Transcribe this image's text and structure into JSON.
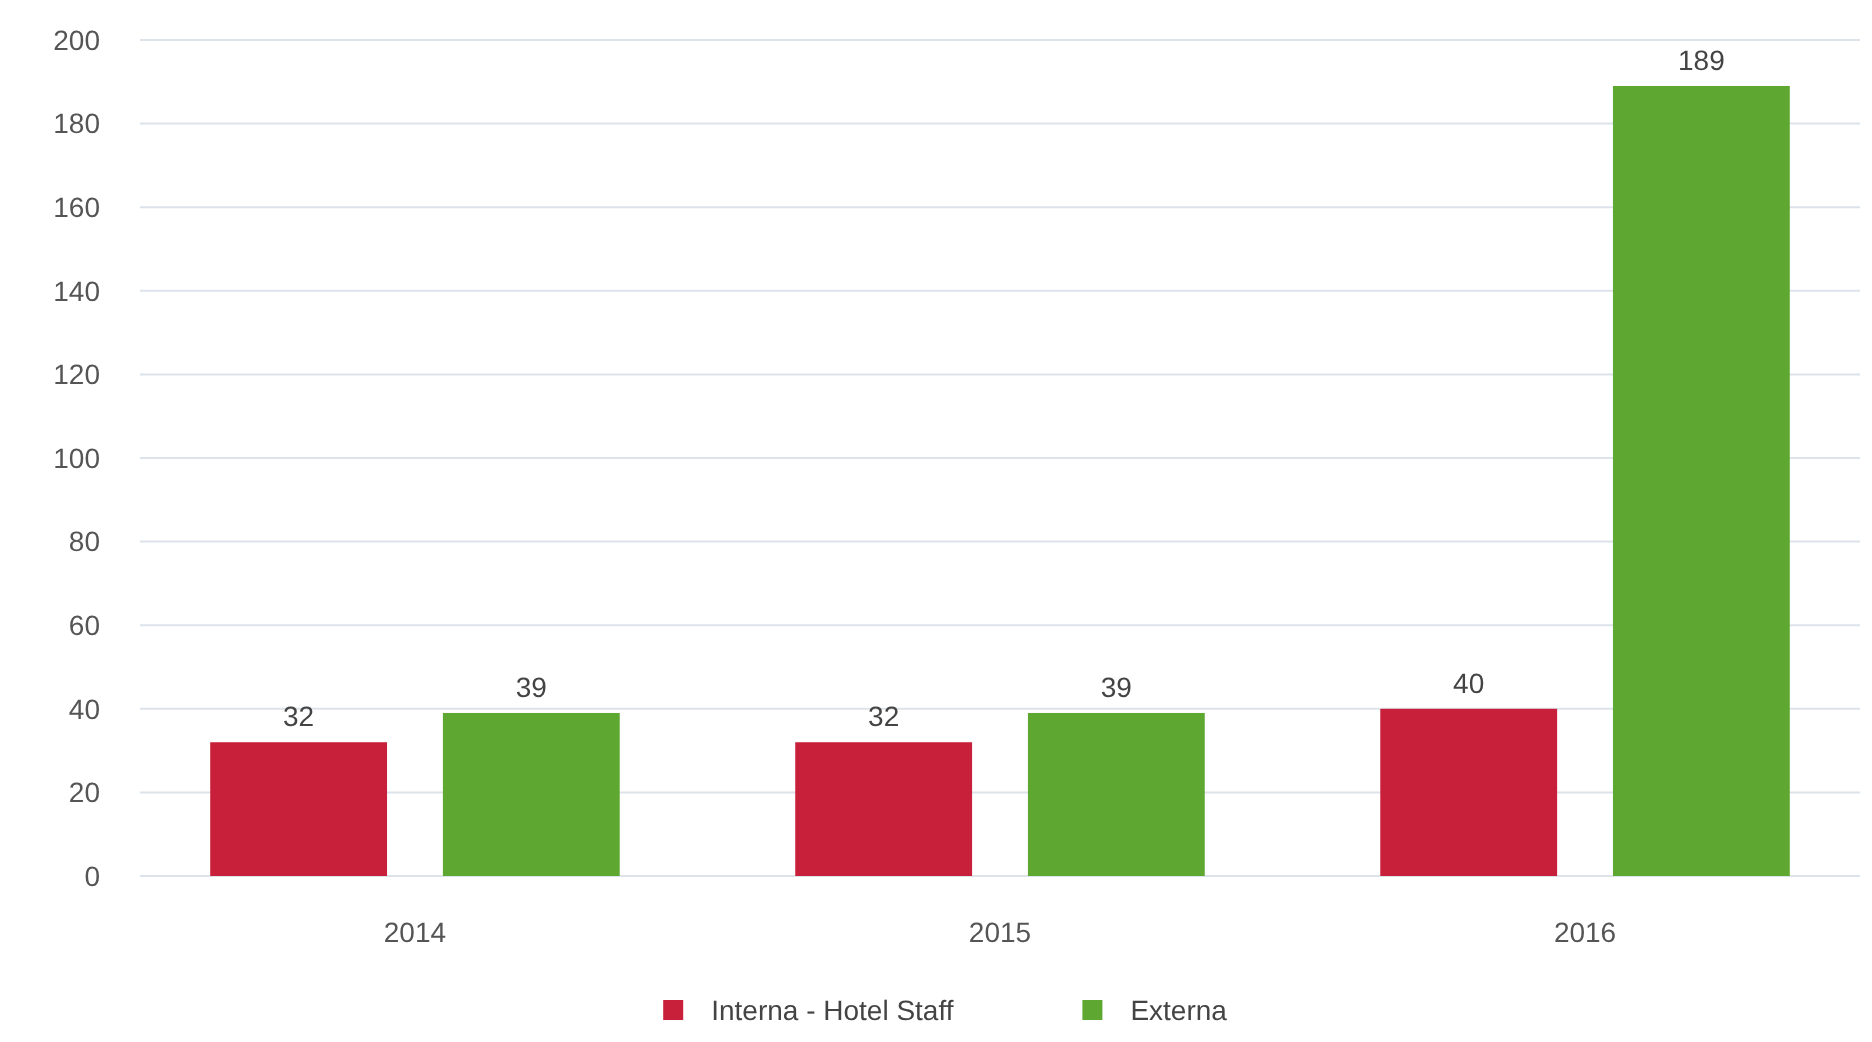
{
  "chart_data": {
    "type": "bar",
    "categories": [
      "2014",
      "2015",
      "2016"
    ],
    "series": [
      {
        "name": "Interna - Hotel Staff",
        "color": "#c8203a",
        "values": [
          32,
          32,
          40
        ]
      },
      {
        "name": "Externa",
        "color": "#5ea832",
        "values": [
          39,
          39,
          189
        ]
      }
    ],
    "ylim": [
      0,
      200
    ],
    "yticks": [
      0,
      20,
      40,
      60,
      80,
      100,
      120,
      140,
      160,
      180,
      200
    ],
    "grid": "y",
    "data_labels": true,
    "legend": "bottom"
  }
}
